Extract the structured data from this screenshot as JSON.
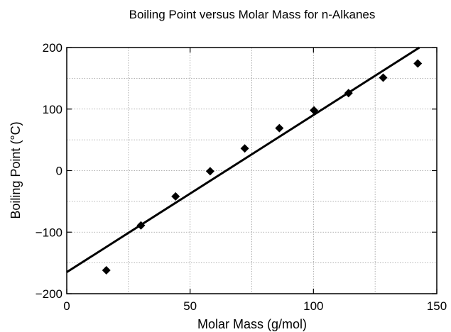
{
  "chart_data": {
    "type": "scatter",
    "title": "Boiling Point versus Molar Mass for n-Alkanes",
    "xlabel": "Molar Mass (g/mol)",
    "ylabel": "Boiling Point (°C)",
    "xlim": [
      0,
      150
    ],
    "ylim": [
      -200,
      200
    ],
    "x_ticks": [
      0,
      50,
      100,
      150
    ],
    "y_ticks": [
      -200,
      -100,
      0,
      100,
      200
    ],
    "x_tick_labels": [
      "0",
      "50",
      "100",
      "150"
    ],
    "y_tick_labels": [
      "−200",
      "−100",
      "0",
      "100",
      "200"
    ],
    "grid": true,
    "grid_style": "dotted",
    "marker": "diamond",
    "colors": {
      "points": "#000000",
      "fit_line": "#000000",
      "grid": "#9a9a9a",
      "axes": "#000000"
    },
    "series": [
      {
        "x": [
          16.04,
          30.07,
          44.1,
          58.12,
          72.15,
          86.18,
          100.21,
          114.23,
          128.26,
          142.29
        ],
        "y": [
          -162,
          -89,
          -42,
          -1,
          36,
          69,
          98,
          126,
          151,
          174
        ]
      }
    ],
    "fit_line": {
      "x": [
        0,
        150
      ],
      "y": [
        -165,
        218
      ]
    }
  }
}
